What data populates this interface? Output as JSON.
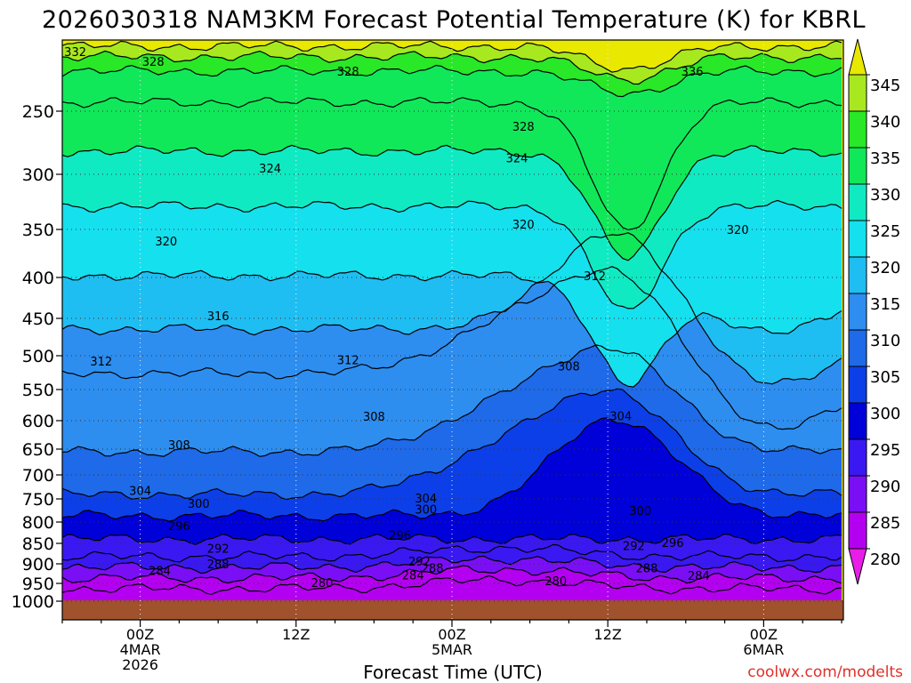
{
  "chart_data": {
    "type": "heatmap",
    "subtype": "time-height contour (filled)",
    "title": "2026030318 NAM3KM Forecast Potential Temperature (K) for KBRL",
    "xlabel": "Forecast Time (UTC)",
    "ylabel": "",
    "credit": "coolwx.com/modelts",
    "x_ticks": [
      {
        "hours": 6,
        "lines": [
          "00Z",
          "4MAR",
          "2026"
        ]
      },
      {
        "hours": 18,
        "lines": [
          "12Z"
        ]
      },
      {
        "hours": 30,
        "lines": [
          "00Z",
          "5MAR"
        ]
      },
      {
        "hours": 42,
        "lines": [
          "12Z"
        ]
      },
      {
        "hours": 54,
        "lines": [
          "00Z",
          "6MAR"
        ]
      }
    ],
    "xlim_hours": [
      0,
      60
    ],
    "ylim_hpa": [
      1000,
      200
    ],
    "y_ticks": [
      250,
      300,
      350,
      400,
      450,
      500,
      550,
      600,
      650,
      700,
      750,
      800,
      850,
      900,
      950,
      1000
    ],
    "colorbar": {
      "ticks": [
        280,
        285,
        290,
        295,
        300,
        305,
        310,
        315,
        320,
        325,
        330,
        335,
        340,
        345
      ],
      "colors": [
        "#e81ee8",
        "#b400f0",
        "#7a0ff5",
        "#3a18f2",
        "#0000d8",
        "#0d3fe8",
        "#1e6ae8",
        "#2d8ef0",
        "#1fbef2",
        "#15e0ee",
        "#10eac3",
        "#10e85a",
        "#28e828",
        "#a8e81e",
        "#e8e800"
      ]
    },
    "contour_interval_k": 4,
    "contour_values": [
      280,
      284,
      288,
      292,
      296,
      300,
      304,
      308,
      312,
      316,
      320,
      324,
      328,
      332,
      336,
      340,
      344
    ],
    "contour_labels": [
      {
        "value": "332",
        "hours": 1.0,
        "hpa": 208
      },
      {
        "value": "328",
        "hours": 7.0,
        "hpa": 215
      },
      {
        "value": "328",
        "hours": 22.0,
        "hpa": 222
      },
      {
        "value": "336",
        "hours": 48.5,
        "hpa": 222
      },
      {
        "value": "328",
        "hours": 35.5,
        "hpa": 262
      },
      {
        "value": "324",
        "hours": 16.0,
        "hpa": 295
      },
      {
        "value": "324",
        "hours": 35.0,
        "hpa": 287
      },
      {
        "value": "320",
        "hours": 8.0,
        "hpa": 362
      },
      {
        "value": "320",
        "hours": 35.5,
        "hpa": 345
      },
      {
        "value": "320",
        "hours": 52.0,
        "hpa": 350
      },
      {
        "value": "312",
        "hours": 41.0,
        "hpa": 398
      },
      {
        "value": "316",
        "hours": 12.0,
        "hpa": 447
      },
      {
        "value": "312",
        "hours": 3.0,
        "hpa": 508
      },
      {
        "value": "312",
        "hours": 22.0,
        "hpa": 506
      },
      {
        "value": "308",
        "hours": 39.0,
        "hpa": 515
      },
      {
        "value": "308",
        "hours": 24.0,
        "hpa": 593
      },
      {
        "value": "304",
        "hours": 43.0,
        "hpa": 592
      },
      {
        "value": "308",
        "hours": 9.0,
        "hpa": 642
      },
      {
        "value": "304",
        "hours": 6.0,
        "hpa": 732
      },
      {
        "value": "304",
        "hours": 28.0,
        "hpa": 748
      },
      {
        "value": "300",
        "hours": 10.5,
        "hpa": 760
      },
      {
        "value": "300",
        "hours": 28.0,
        "hpa": 772
      },
      {
        "value": "300",
        "hours": 44.5,
        "hpa": 775
      },
      {
        "value": "296",
        "hours": 9.0,
        "hpa": 808
      },
      {
        "value": "296",
        "hours": 26.0,
        "hpa": 830
      },
      {
        "value": "292",
        "hours": 12.0,
        "hpa": 862
      },
      {
        "value": "292",
        "hours": 44.0,
        "hpa": 855
      },
      {
        "value": "296",
        "hours": 47.0,
        "hpa": 848
      },
      {
        "value": "288",
        "hours": 12.0,
        "hpa": 900
      },
      {
        "value": "292",
        "hours": 27.5,
        "hpa": 893
      },
      {
        "value": "288",
        "hours": 28.5,
        "hpa": 910
      },
      {
        "value": "288",
        "hours": 45.0,
        "hpa": 910
      },
      {
        "value": "284",
        "hours": 7.5,
        "hpa": 917
      },
      {
        "value": "284",
        "hours": 27.0,
        "hpa": 928
      },
      {
        "value": "284",
        "hours": 49.0,
        "hpa": 930
      },
      {
        "value": "280",
        "hours": 20.0,
        "hpa": 948
      },
      {
        "value": "280",
        "hours": 38.0,
        "hpa": 943
      }
    ],
    "grid": "dotted",
    "below_ground_color": "#a0522d"
  }
}
